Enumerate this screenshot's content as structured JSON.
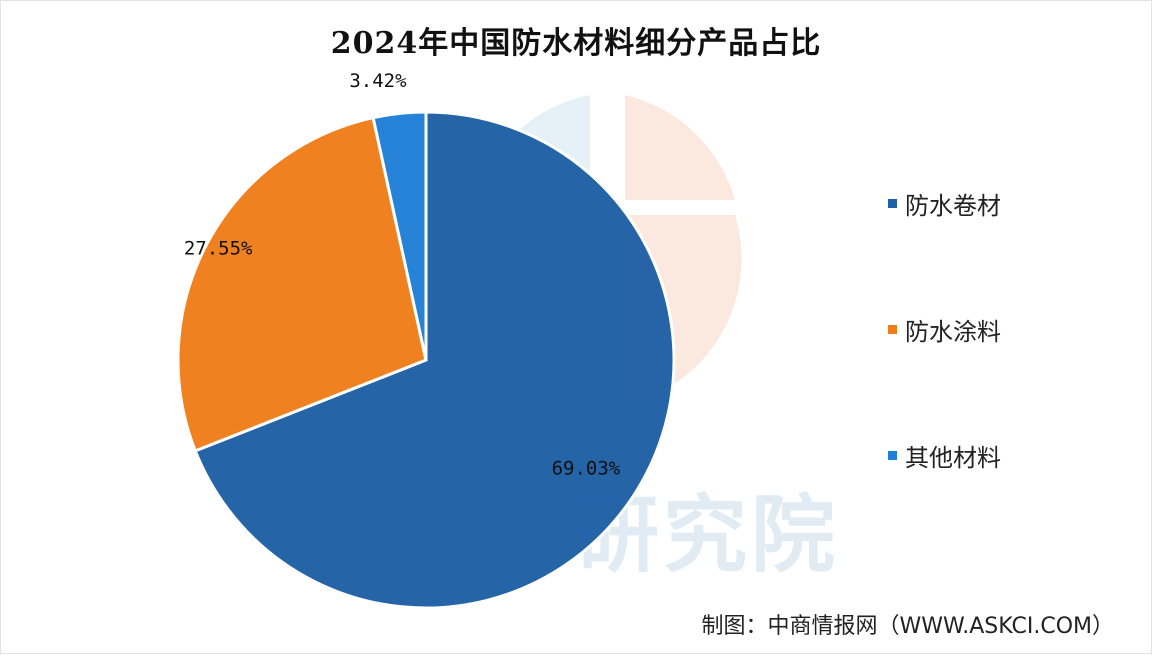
{
  "title": "2024年中国防水材料细分产品占比",
  "watermark": "研究院",
  "credit": "制图：中商情报网（WWW.ASKCI.COM）",
  "chart_data": {
    "type": "pie",
    "title": "2024年中国防水材料细分产品占比",
    "slices": [
      {
        "name": "防水卷材",
        "value": 69.03,
        "label": "69.03%",
        "color": "#1f5fa5"
      },
      {
        "name": "防水涂料",
        "value": 27.55,
        "label": "27.55%",
        "color": "#f07d19"
      },
      {
        "name": "其他材料",
        "value": 3.42,
        "label": "3.42%",
        "color": "#1f7fd6"
      }
    ],
    "legend_position": "right"
  }
}
